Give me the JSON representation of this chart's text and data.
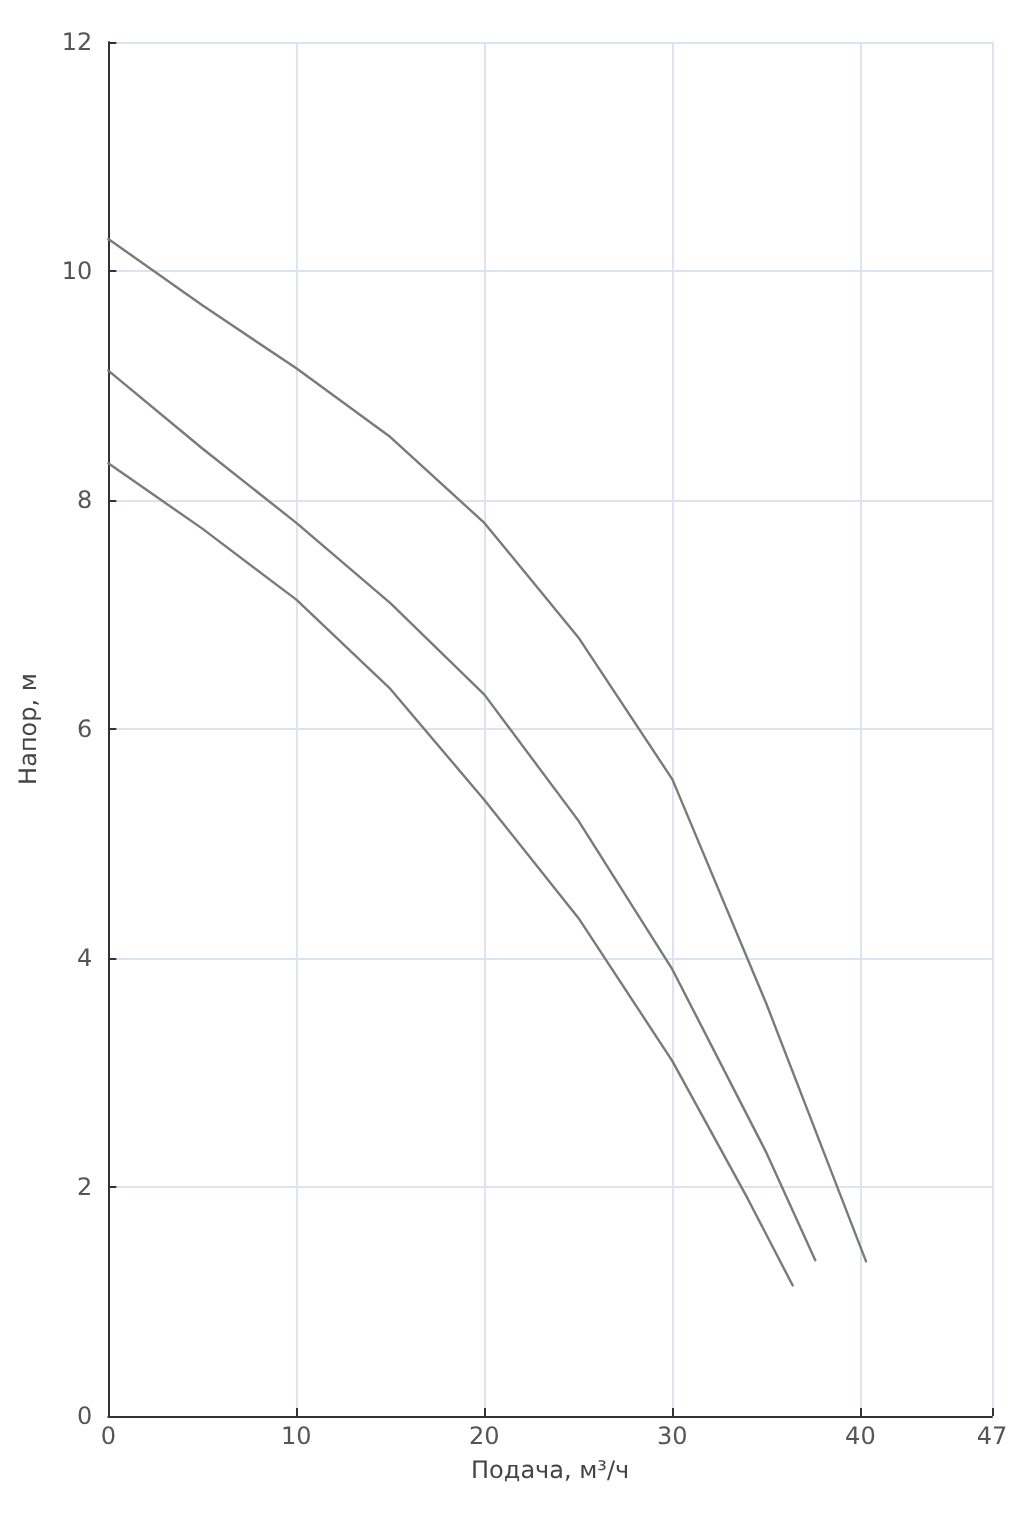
{
  "chart_data": {
    "type": "line",
    "xlabel": "Подача, м³/ч",
    "ylabel": "Напор, м",
    "xlim": [
      0,
      47
    ],
    "xticks": [
      0,
      10,
      20,
      30,
      40,
      47
    ],
    "ylim": [
      0,
      12
    ],
    "yticks": [
      0,
      2,
      4,
      6,
      8,
      10,
      12
    ],
    "grid": true,
    "marker": "none",
    "line_style": "solid",
    "series": [
      {
        "color": "#7a7a7a",
        "x": [
          0,
          5,
          10,
          15,
          20,
          25,
          30,
          35,
          40.3
        ],
        "values": [
          10.28,
          9.7,
          9.15,
          8.55,
          7.8,
          6.8,
          5.56,
          3.6,
          1.35
        ]
      },
      {
        "color": "#7a7a7a",
        "x": [
          0,
          5,
          10,
          15,
          20,
          25,
          30,
          35,
          37.6
        ],
        "values": [
          9.13,
          8.45,
          7.8,
          7.1,
          6.3,
          5.2,
          3.9,
          2.3,
          1.36
        ]
      },
      {
        "color": "#7a7a7a",
        "x": [
          0,
          5,
          10,
          15,
          20,
          25,
          30,
          34,
          36.4
        ],
        "values": [
          8.32,
          7.75,
          7.13,
          6.35,
          5.38,
          4.35,
          3.1,
          1.9,
          1.14
        ]
      }
    ]
  }
}
